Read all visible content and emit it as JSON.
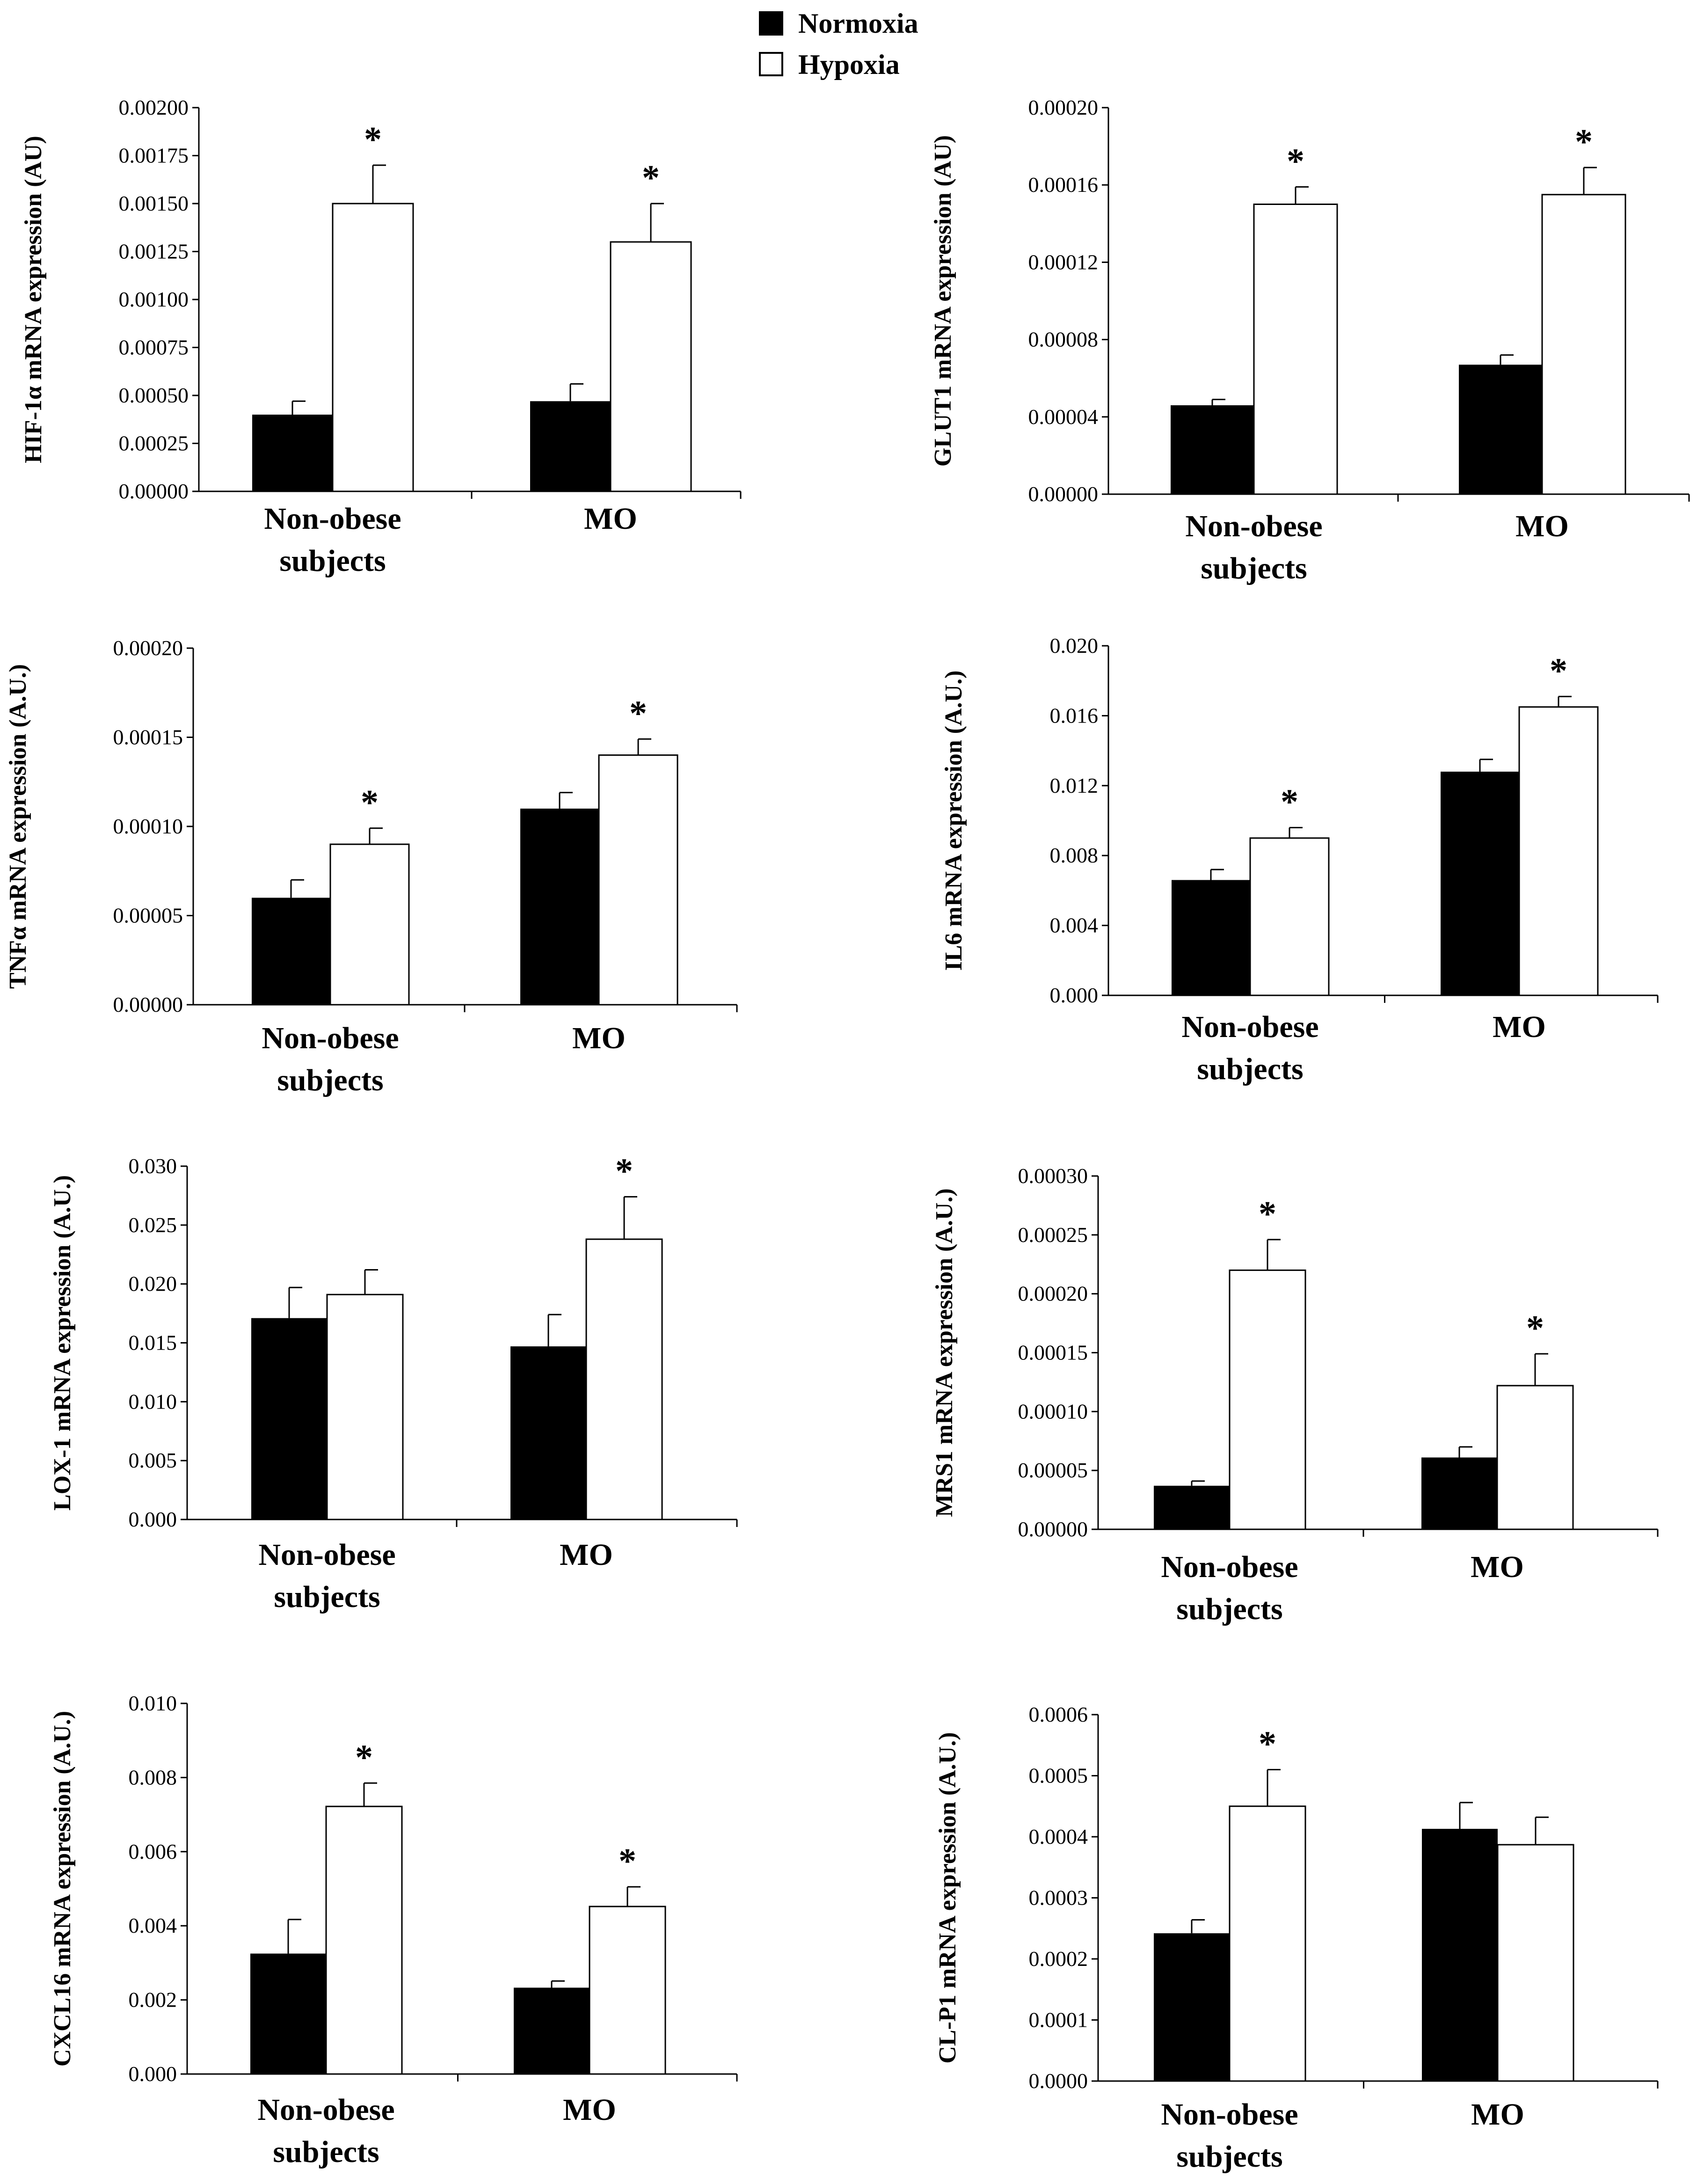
{
  "legend": {
    "normoxia": "Normoxia",
    "hypoxia": "Hypoxia",
    "normoxia_color": "#000000",
    "hypoxia_color": "#ffffff"
  },
  "chart_data": [
    {
      "type": "bar",
      "ylabel": "HIF-1α mRNA expression (AU)",
      "categories": [
        "Non-obese|subjects",
        "MO"
      ],
      "series": [
        {
          "name": "Normoxia",
          "values": [
            0.0004,
            0.00047
          ],
          "errors": [
            7e-05,
            9e-05
          ],
          "significant": [
            false,
            false
          ]
        },
        {
          "name": "Hypoxia",
          "values": [
            0.0015,
            0.0013
          ],
          "errors": [
            0.0002,
            0.0002
          ],
          "significant": [
            true,
            true
          ]
        }
      ],
      "ylim": [
        0,
        0.002
      ],
      "yticks": [
        "0.00000",
        "0.00025",
        "0.00050",
        "0.00075",
        "0.00100",
        "0.00125",
        "0.00150",
        "0.00175",
        "0.00200"
      ]
    },
    {
      "type": "bar",
      "ylabel": "GLUT1 mRNA expression (AU)",
      "categories": [
        "Non-obese|subjects",
        "MO"
      ],
      "series": [
        {
          "name": "Normoxia",
          "values": [
            4.6e-05,
            6.7e-05
          ],
          "errors": [
            3e-06,
            5e-06
          ],
          "significant": [
            false,
            false
          ]
        },
        {
          "name": "Hypoxia",
          "values": [
            0.00015,
            0.000155
          ],
          "errors": [
            9e-06,
            1.4e-05
          ],
          "significant": [
            true,
            true
          ]
        }
      ],
      "ylim": [
        0,
        0.0002
      ],
      "yticks": [
        "0.00000",
        "0.00004",
        "0.00008",
        "0.00012",
        "0.00016",
        "0.00020"
      ]
    },
    {
      "type": "bar",
      "ylabel": "TNFα mRNA expression (A.U.)",
      "categories": [
        "Non-obese|subjects",
        "MO"
      ],
      "series": [
        {
          "name": "Normoxia",
          "values": [
            6e-05,
            0.00011
          ],
          "errors": [
            1e-05,
            9e-06
          ],
          "significant": [
            false,
            false
          ]
        },
        {
          "name": "Hypoxia",
          "values": [
            9e-05,
            0.00014
          ],
          "errors": [
            9e-06,
            9e-06
          ],
          "significant": [
            true,
            true
          ]
        }
      ],
      "ylim": [
        0,
        0.0002
      ],
      "yticks": [
        "0.00000",
        "0.00005",
        "0.00010",
        "0.00015",
        "0.00020"
      ]
    },
    {
      "type": "bar",
      "ylabel": "IL6 mRNA expression (A.U.)",
      "categories": [
        "Non-obese|subjects",
        "MO"
      ],
      "series": [
        {
          "name": "Normoxia",
          "values": [
            0.0066,
            0.0128
          ],
          "errors": [
            0.0006,
            0.0007
          ],
          "significant": [
            false,
            false
          ]
        },
        {
          "name": "Hypoxia",
          "values": [
            0.009,
            0.0165
          ],
          "errors": [
            0.0006,
            0.0006
          ],
          "significant": [
            true,
            true
          ]
        }
      ],
      "ylim": [
        0,
        0.02
      ],
      "yticks": [
        "0.000",
        "0.004",
        "0.008",
        "0.012",
        "0.016",
        "0.020"
      ]
    },
    {
      "type": "bar",
      "ylabel": "LOX-1 mRNA expression (A.U.)",
      "categories": [
        "Non-obese|subjects",
        "MO"
      ],
      "series": [
        {
          "name": "Normoxia",
          "values": [
            0.0171,
            0.0147
          ],
          "errors": [
            0.0026,
            0.0027
          ],
          "significant": [
            false,
            false
          ]
        },
        {
          "name": "Hypoxia",
          "values": [
            0.0191,
            0.0238
          ],
          "errors": [
            0.0021,
            0.0036
          ],
          "significant": [
            false,
            true
          ]
        }
      ],
      "ylim": [
        0,
        0.03
      ],
      "yticks": [
        "0.000",
        "0.005",
        "0.010",
        "0.015",
        "0.020",
        "0.025",
        "0.030"
      ]
    },
    {
      "type": "bar",
      "ylabel": "MRS1 mRNA expression (A.U.)",
      "categories": [
        "Non-obese|subjects",
        "MO"
      ],
      "series": [
        {
          "name": "Normoxia",
          "values": [
            3.7e-05,
            6.1e-05
          ],
          "errors": [
            4e-06,
            9e-06
          ],
          "significant": [
            false,
            false
          ]
        },
        {
          "name": "Hypoxia",
          "values": [
            0.00022,
            0.000122
          ],
          "errors": [
            2.6e-05,
            2.7e-05
          ],
          "significant": [
            true,
            true
          ]
        }
      ],
      "ylim": [
        0,
        0.0003
      ],
      "yticks": [
        "0.00000",
        "0.00005",
        "0.00010",
        "0.00015",
        "0.00020",
        "0.00025",
        "0.00030"
      ]
    },
    {
      "type": "bar",
      "ylabel": "CXCL16 mRNA expression (A.U.)",
      "categories": [
        "Non-obese|subjects",
        "MO"
      ],
      "series": [
        {
          "name": "Normoxia",
          "values": [
            0.00325,
            0.00233
          ],
          "errors": [
            0.00092,
            0.00018
          ],
          "significant": [
            false,
            false
          ]
        },
        {
          "name": "Hypoxia",
          "values": [
            0.00722,
            0.00452
          ],
          "errors": [
            0.00063,
            0.00053
          ],
          "significant": [
            true,
            true
          ]
        }
      ],
      "ylim": [
        0,
        0.01
      ],
      "yticks": [
        "0.000",
        "0.002",
        "0.004",
        "0.006",
        "0.008",
        "0.010"
      ]
    },
    {
      "type": "bar",
      "ylabel": "CL-P1 mRNA expression (A.U.)",
      "categories": [
        "Non-obese|subjects",
        "MO"
      ],
      "series": [
        {
          "name": "Normoxia",
          "values": [
            0.000242,
            0.000413
          ],
          "errors": [
            2.2e-05,
            4.3e-05
          ],
          "significant": [
            false,
            false
          ]
        },
        {
          "name": "Hypoxia",
          "values": [
            0.00045,
            0.000387
          ],
          "errors": [
            6e-05,
            4.5e-05
          ],
          "significant": [
            true,
            false
          ]
        }
      ],
      "ylim": [
        0,
        0.0006
      ],
      "yticks": [
        "0.0000",
        "0.0001",
        "0.0002",
        "0.0003",
        "0.0004",
        "0.0005",
        "0.0006"
      ]
    }
  ]
}
